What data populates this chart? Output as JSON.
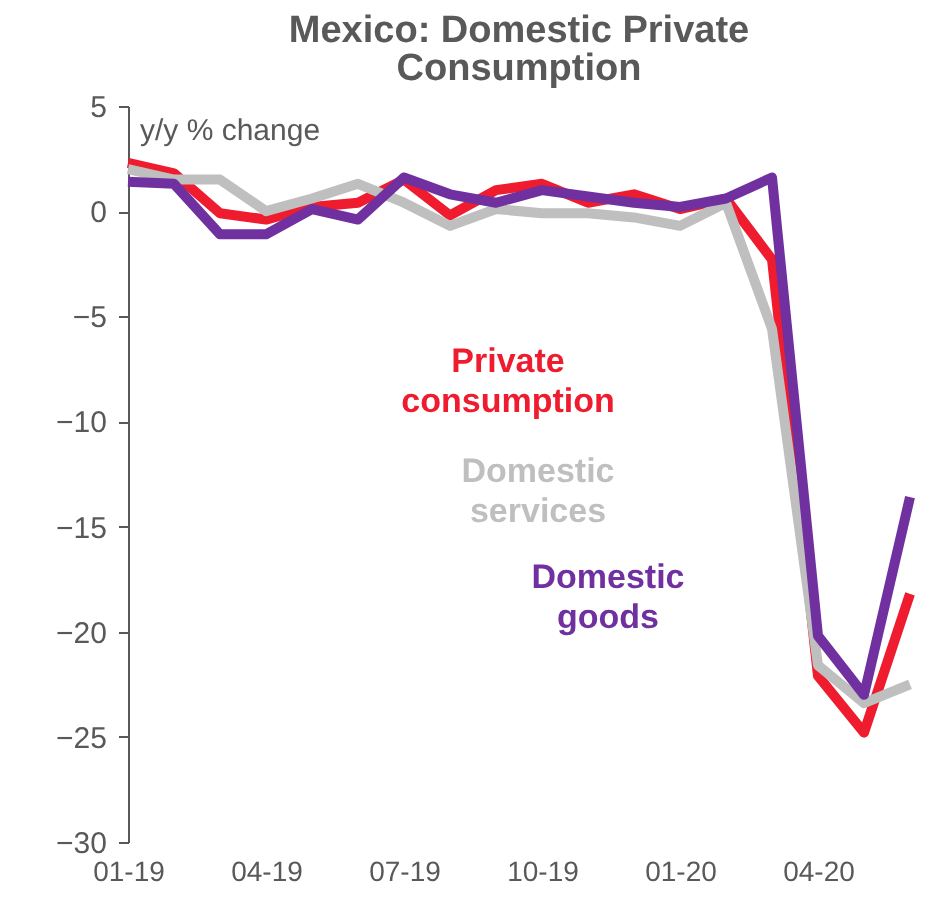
{
  "chart_data": {
    "type": "line",
    "title": "Mexico: Domestic Private Consumption",
    "ylabel": "y/y % change",
    "categories": [
      "01-19",
      null,
      null,
      "04-19",
      null,
      null,
      "07-19",
      null,
      null,
      "10-19",
      null,
      null,
      "01-20",
      null,
      null,
      "04-20",
      null,
      null
    ],
    "series": [
      {
        "name": "Private consumption",
        "color": "#ee1c2e",
        "values": [
          2.3,
          1.8,
          -0.1,
          -0.4,
          0.2,
          0.4,
          1.5,
          -0.2,
          1.0,
          1.3,
          0.4,
          0.8,
          0.1,
          0.6,
          -2.3,
          -22.1,
          -24.8,
          -18.2
        ]
      },
      {
        "name": "Domestic services",
        "color": "#bfbfbf",
        "values": [
          2.0,
          1.5,
          1.5,
          0.0,
          0.6,
          1.3,
          0.4,
          -0.7,
          0.1,
          -0.1,
          -0.1,
          -0.3,
          -0.7,
          0.4,
          -5.6,
          -21.6,
          -23.4,
          -22.5
        ]
      },
      {
        "name": "Domestic goods",
        "color": "#7030a0",
        "values": [
          1.4,
          1.3,
          -1.1,
          -1.1,
          0.1,
          -0.4,
          1.6,
          0.8,
          0.4,
          1.0,
          0.7,
          0.4,
          0.2,
          0.6,
          1.6,
          -20.2,
          -23.0,
          -13.6
        ]
      }
    ],
    "ylim": [
      -30,
      5
    ],
    "yticks": [
      -30,
      -25,
      -20,
      -15,
      -10,
      -5,
      0,
      5
    ],
    "grid": false,
    "legend": false
  }
}
